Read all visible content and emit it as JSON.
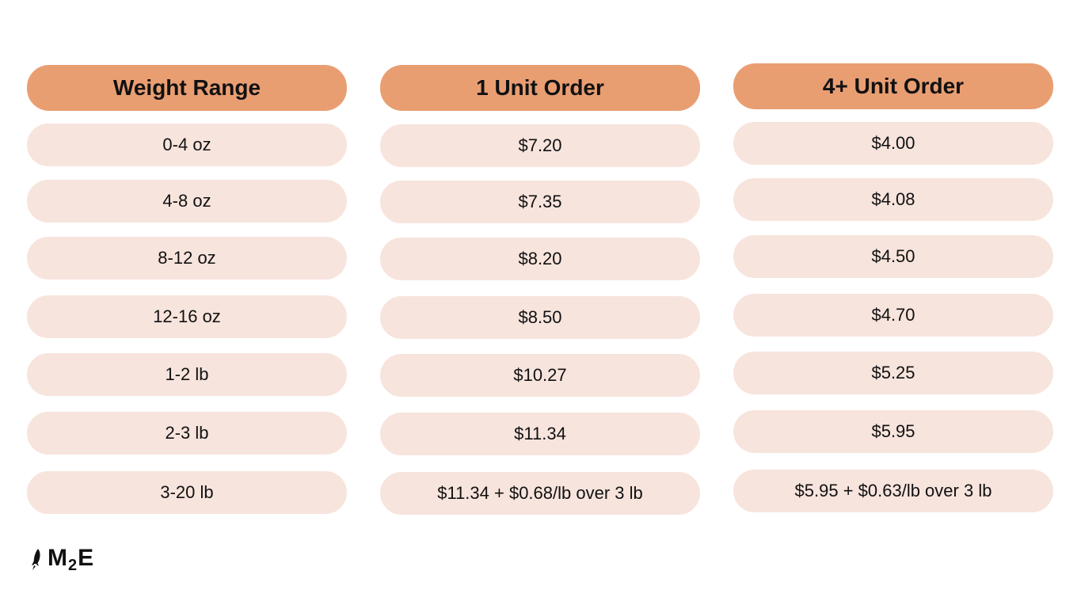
{
  "colors": {
    "header_bg": "#e99e72",
    "cell_bg": "#f7e4dd"
  },
  "columns": [
    {
      "header": "Weight Range",
      "cells": [
        "0-4 oz",
        "4-8 oz",
        "8-12 oz",
        "12-16 oz",
        "1-2 lb",
        "2-3 lb",
        "3-20 lb"
      ]
    },
    {
      "header": "1 Unit Order",
      "cells": [
        "$7.20",
        "$7.35",
        "$8.20",
        "$8.50",
        "$10.27",
        "$11.34",
        "$11.34 + $0.68/lb over 3 lb"
      ]
    },
    {
      "header": "4+ Unit Order",
      "cells": [
        "$4.00",
        "$4.08",
        "$4.50",
        "$4.70",
        "$5.25",
        "$5.95",
        "$5.95 + $0.63/lb over 3 lb"
      ]
    }
  ],
  "logo": {
    "text_main": "M",
    "text_sub": "2",
    "text_end": "E",
    "icon": "rocket-icon"
  }
}
